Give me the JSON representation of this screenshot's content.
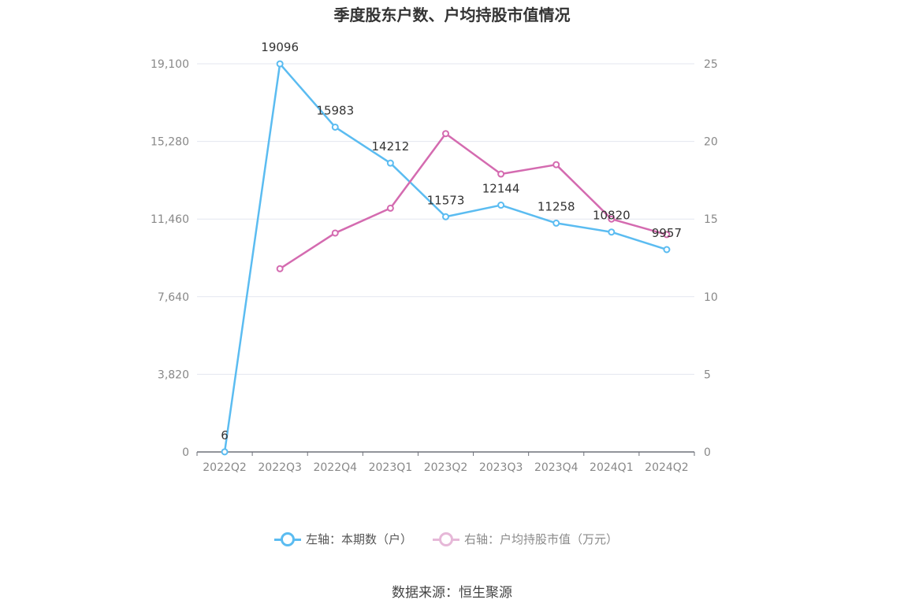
{
  "chart_data": {
    "type": "line",
    "title": "季度股东户数、户均持股市值情况",
    "categories": [
      "2022Q2",
      "2022Q3",
      "2022Q4",
      "2023Q1",
      "2023Q2",
      "2023Q3",
      "2023Q4",
      "2024Q1",
      "2024Q2"
    ],
    "left_axis": {
      "ticks": [
        "0",
        "3,820",
        "7,640",
        "11,460",
        "15,280",
        "19,100"
      ],
      "ylim": [
        0,
        19100
      ]
    },
    "right_axis": {
      "ticks": [
        "0",
        "5",
        "10",
        "15",
        "20",
        "25"
      ],
      "ylim": [
        0,
        25
      ]
    },
    "series": [
      {
        "name": "左轴：本期数（户）",
        "axis": "left",
        "color": "#5bbcf1",
        "values": [
          6,
          19096,
          15983,
          14212,
          11573,
          12144,
          11258,
          10820,
          9957
        ],
        "labels": [
          "6",
          "19096",
          "15983",
          "14212",
          "11573",
          "12144",
          "11258",
          "10820",
          "9957"
        ]
      },
      {
        "name": "右轴：户均持股市值（万元）",
        "axis": "right",
        "color": "#d46bb0",
        "values": [
          null,
          11.8,
          14.1,
          15.7,
          20.5,
          17.9,
          18.5,
          15.0,
          14.0
        ]
      }
    ],
    "grid": true,
    "legend_position": "bottom"
  },
  "source": "数据来源：恒生聚源"
}
